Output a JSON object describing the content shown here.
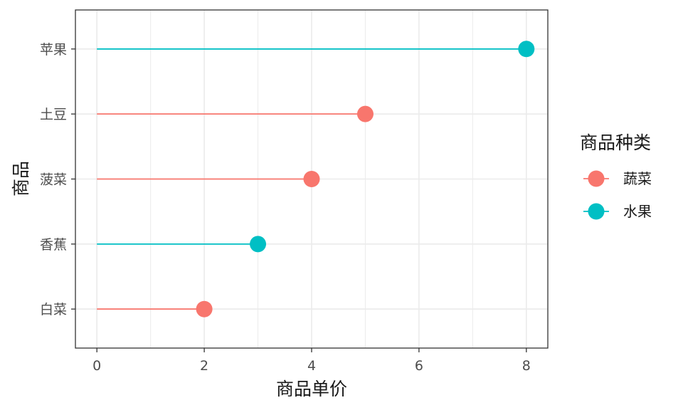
{
  "chart_data": {
    "type": "lollipop",
    "xlabel": "商品单价",
    "ylabel": "商品",
    "xlim": [
      -0.4,
      8.4
    ],
    "x_ticks": [
      0,
      2,
      4,
      6,
      8
    ],
    "grid": true,
    "legend": {
      "title": "商品种类",
      "position": "right",
      "entries": [
        {
          "name": "蔬菜",
          "color": "#F8766D"
        },
        {
          "name": "水果",
          "color": "#00BFC4"
        }
      ]
    },
    "categories": [
      "苹果",
      "土豆",
      "菠菜",
      "香蕉",
      "白菜"
    ],
    "points": [
      {
        "category": "苹果",
        "value": 8,
        "group": "水果"
      },
      {
        "category": "土豆",
        "value": 5,
        "group": "蔬菜"
      },
      {
        "category": "菠菜",
        "value": 4,
        "group": "蔬菜"
      },
      {
        "category": "香蕉",
        "value": 3,
        "group": "水果"
      },
      {
        "category": "白菜",
        "value": 2,
        "group": "蔬菜"
      }
    ]
  }
}
